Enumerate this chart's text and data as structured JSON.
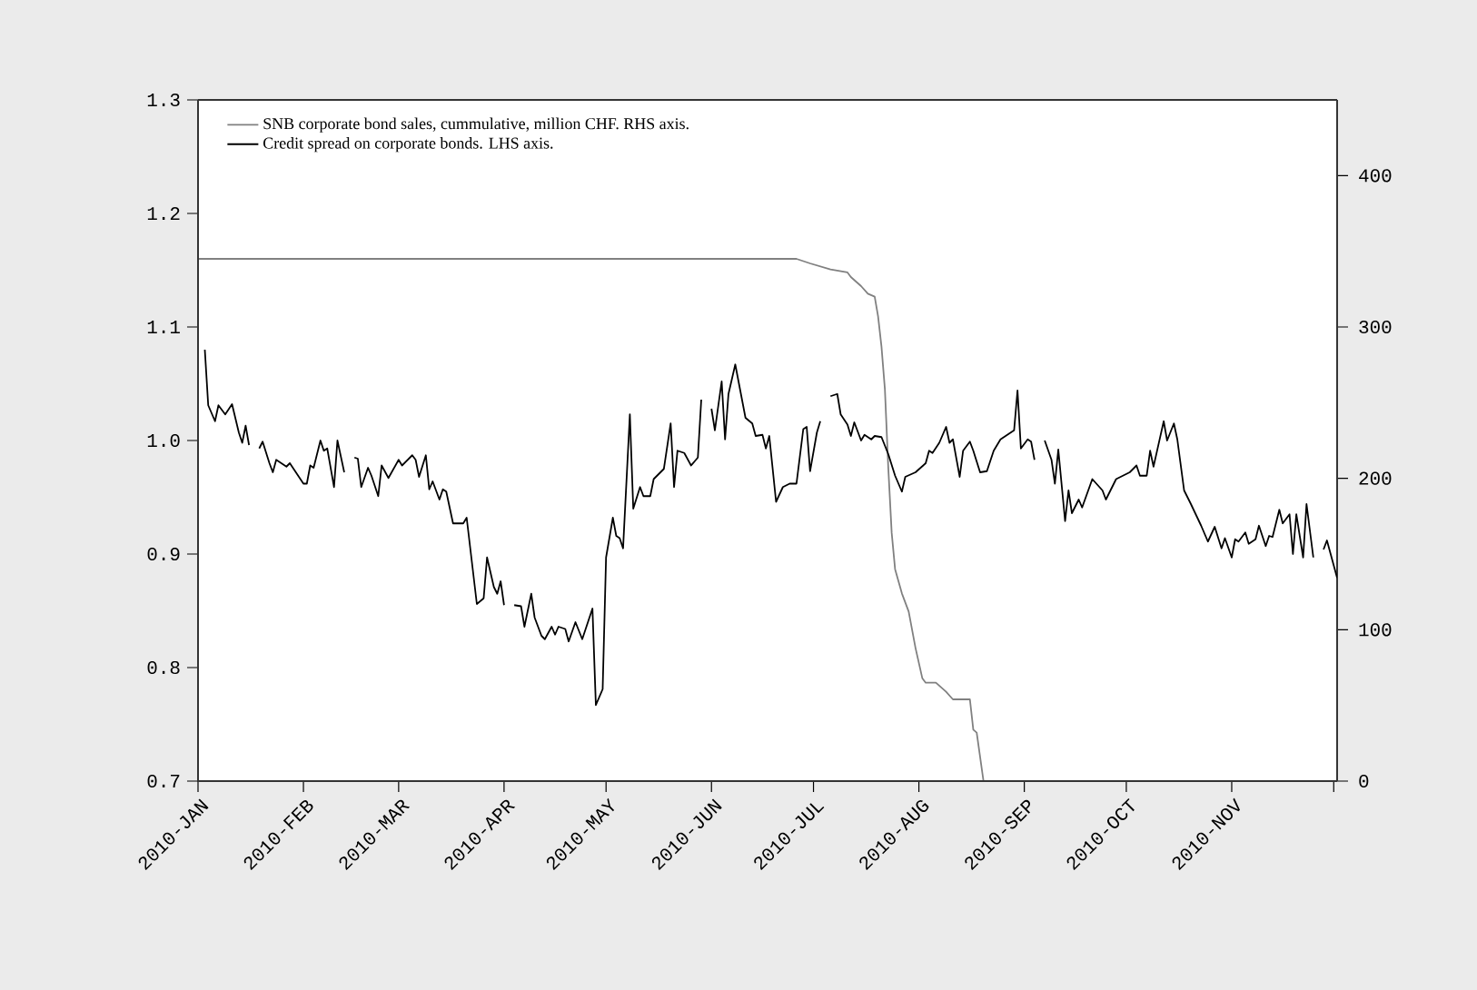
{
  "chart_data": {
    "type": "line",
    "legend": "top left",
    "xlim": [
      "2010-01-01",
      "2010-12-02"
    ],
    "xticks": [
      {
        "value": "2010-01-01",
        "label": "2010-JAN"
      },
      {
        "value": "2010-02-01",
        "label": "2010-FEB"
      },
      {
        "value": "2010-03-01",
        "label": "2010-MAR"
      },
      {
        "value": "2010-04-01",
        "label": "2010-APR"
      },
      {
        "value": "2010-05-01",
        "label": "2010-MAY"
      },
      {
        "value": "2010-06-01",
        "label": "2010-JUN"
      },
      {
        "value": "2010-07-01",
        "label": "2010-JUL"
      },
      {
        "value": "2010-08-01",
        "label": "2010-AUG"
      },
      {
        "value": "2010-09-01",
        "label": "2010-SEP"
      },
      {
        "value": "2010-10-01",
        "label": "2010-OCT"
      },
      {
        "value": "2010-11-01",
        "label": "2010-NOV"
      },
      {
        "value": "2010-12-01",
        "label": null
      }
    ],
    "ylim": [
      0.7,
      1.3
    ],
    "yticks": [
      {
        "value": 0.7,
        "label": "0.7"
      },
      {
        "value": 0.8,
        "label": "0.8"
      },
      {
        "value": 0.9,
        "label": "0.9"
      },
      {
        "value": 1.0,
        "label": "1.0"
      },
      {
        "value": 1.1,
        "label": "1.1"
      },
      {
        "value": 1.2,
        "label": "1.2"
      },
      {
        "value": 1.3,
        "label": "1.3"
      }
    ],
    "y2lim": [
      0,
      450
    ],
    "y2ticks": [
      0,
      100,
      200,
      300,
      400
    ],
    "series": [
      {
        "name": "SNB corporate bond sales, cummulative, million CHF. RHS axis.",
        "color": "#808080",
        "axis": "y2",
        "x": [
          "2010-01-01",
          "2010-06-26",
          "2010-06-30",
          "2010-07-06",
          "2010-07-11",
          "2010-07-12",
          "2010-07-15",
          "2010-07-17",
          "2010-07-19",
          "2010-07-20",
          "2010-07-21",
          "2010-07-22",
          "2010-07-23",
          "2010-07-24",
          "2010-07-25",
          "2010-07-27",
          "2010-07-29",
          "2010-07-31",
          "2010-08-02",
          "2010-08-03",
          "2010-08-06",
          "2010-08-09",
          "2010-08-11",
          "2010-08-16",
          "2010-08-17",
          "2010-08-18",
          "2010-08-20",
          "2010-12-02"
        ],
        "values": [
          345,
          345,
          342,
          338,
          336,
          333,
          327,
          322,
          320,
          307,
          287,
          259,
          207,
          164,
          140,
          124,
          112,
          88,
          68,
          65,
          65,
          59,
          54,
          54,
          34,
          32,
          0,
          0
        ]
      },
      {
        "name": "Credit spread on corporate bonds. LHS axis.",
        "color": "#000000",
        "axis": "y",
        "x": [
          "2010-01-03",
          "2010-01-04",
          "2010-01-06",
          "2010-01-07",
          "2010-01-09",
          "2010-01-11",
          "2010-01-13",
          "2010-01-14",
          "2010-01-15",
          "2010-01-16",
          "2010-01-18",
          "2010-01-19",
          "2010-01-20",
          "2010-01-22",
          "2010-01-23",
          "2010-01-24",
          "2010-01-27",
          "2010-01-28",
          "2010-02-01",
          "2010-02-02",
          "2010-02-03",
          "2010-02-04",
          "2010-02-06",
          "2010-02-07",
          "2010-02-08",
          "2010-02-10",
          "2010-02-11",
          "2010-02-13",
          "2010-02-14",
          "2010-02-16",
          "2010-02-17",
          "2010-02-18",
          "2010-02-20",
          "2010-02-21",
          "2010-02-23",
          "2010-02-24",
          "2010-02-26",
          "2010-03-01",
          "2010-03-02",
          "2010-03-05",
          "2010-03-06",
          "2010-03-07",
          "2010-03-09",
          "2010-03-10",
          "2010-03-11",
          "2010-03-13",
          "2010-03-14",
          "2010-03-15",
          "2010-03-17",
          "2010-03-20",
          "2010-03-21",
          "2010-03-24",
          "2010-03-26",
          "2010-03-27",
          "2010-03-29",
          "2010-03-30",
          "2010-03-31",
          "2010-04-01",
          "2010-04-02",
          "2010-04-04",
          "2010-04-06",
          "2010-04-07",
          "2010-04-09",
          "2010-04-10",
          "2010-04-12",
          "2010-04-13",
          "2010-04-15",
          "2010-04-16",
          "2010-04-17",
          "2010-04-19",
          "2010-04-20",
          "2010-04-22",
          "2010-04-24",
          "2010-04-27",
          "2010-04-28",
          "2010-04-30",
          "2010-05-01",
          "2010-05-03",
          "2010-05-04",
          "2010-05-05",
          "2010-05-06",
          "2010-05-08",
          "2010-05-09",
          "2010-05-11",
          "2010-05-12",
          "2010-05-14",
          "2010-05-15",
          "2010-05-18",
          "2010-05-20",
          "2010-05-21",
          "2010-05-22",
          "2010-05-24",
          "2010-05-26",
          "2010-05-28",
          "2010-05-29",
          "2010-05-30",
          "2010-06-01",
          "2010-06-02",
          "2010-06-04",
          "2010-06-05",
          "2010-06-06",
          "2010-06-08",
          "2010-06-11",
          "2010-06-13",
          "2010-06-14",
          "2010-06-16",
          "2010-06-17",
          "2010-06-18",
          "2010-06-20",
          "2010-06-22",
          "2010-06-24",
          "2010-06-26",
          "2010-06-28",
          "2010-06-29",
          "2010-06-30",
          "2010-07-02",
          "2010-07-03",
          "2010-07-04",
          "2010-07-06",
          "2010-07-08",
          "2010-07-09",
          "2010-07-11",
          "2010-07-12",
          "2010-07-13",
          "2010-07-15",
          "2010-07-16",
          "2010-07-18",
          "2010-07-19",
          "2010-07-21",
          "2010-07-23",
          "2010-07-25",
          "2010-07-27",
          "2010-07-28",
          "2010-07-31",
          "2010-08-03",
          "2010-08-04",
          "2010-08-05",
          "2010-08-07",
          "2010-08-09",
          "2010-08-10",
          "2010-08-11",
          "2010-08-13",
          "2010-08-14",
          "2010-08-16",
          "2010-08-17",
          "2010-08-19",
          "2010-08-21",
          "2010-08-23",
          "2010-08-25",
          "2010-08-29",
          "2010-08-30",
          "2010-08-31",
          "2010-09-02",
          "2010-09-03",
          "2010-09-04",
          "2010-09-05",
          "2010-09-07",
          "2010-09-09",
          "2010-09-10",
          "2010-09-11",
          "2010-09-13",
          "2010-09-14",
          "2010-09-15",
          "2010-09-17",
          "2010-09-18",
          "2010-09-21",
          "2010-09-24",
          "2010-09-25",
          "2010-09-28",
          "2010-09-30",
          "2010-10-02",
          "2010-10-04",
          "2010-10-05",
          "2010-10-07",
          "2010-10-08",
          "2010-10-09",
          "2010-10-12",
          "2010-10-13",
          "2010-10-15",
          "2010-10-16",
          "2010-10-18",
          "2010-10-20",
          "2010-10-23",
          "2010-10-25",
          "2010-10-27",
          "2010-10-29",
          "2010-10-30",
          "2010-11-01",
          "2010-11-02",
          "2010-11-03",
          "2010-11-05",
          "2010-11-06",
          "2010-11-08",
          "2010-11-09",
          "2010-11-11",
          "2010-11-12",
          "2010-11-13",
          "2010-11-15",
          "2010-11-16",
          "2010-11-18",
          "2010-11-19",
          "2010-11-20",
          "2010-11-22",
          "2010-11-23",
          "2010-11-25",
          "2010-11-26",
          "2010-11-28",
          "2010-11-29",
          "2010-12-02"
        ],
        "values": [
          1.08,
          1.031,
          1.017,
          1.031,
          1.023,
          1.032,
          1.007,
          0.998,
          1.013,
          0.996,
          null,
          0.993,
          0.999,
          0.98,
          0.972,
          0.983,
          0.977,
          0.98,
          0.962,
          0.962,
          0.978,
          0.976,
          1.0,
          0.991,
          0.993,
          0.959,
          1.0,
          0.972,
          null,
          0.985,
          0.984,
          0.959,
          0.976,
          0.969,
          0.951,
          0.978,
          0.967,
          0.983,
          0.978,
          0.987,
          0.983,
          0.968,
          0.987,
          0.957,
          0.964,
          0.948,
          0.957,
          0.955,
          0.927,
          0.927,
          0.932,
          0.856,
          0.861,
          0.897,
          0.871,
          0.865,
          0.876,
          0.855,
          null,
          0.855,
          0.854,
          0.836,
          0.865,
          0.844,
          0.828,
          0.825,
          0.836,
          0.829,
          0.836,
          0.834,
          0.823,
          0.84,
          0.825,
          0.852,
          0.767,
          0.781,
          0.897,
          0.932,
          0.916,
          0.914,
          0.905,
          1.023,
          0.94,
          0.959,
          0.951,
          0.951,
          0.966,
          0.975,
          1.015,
          0.959,
          0.991,
          0.989,
          0.978,
          0.985,
          1.036,
          null,
          1.028,
          1.009,
          1.052,
          1.001,
          1.041,
          1.067,
          1.02,
          1.015,
          1.004,
          1.005,
          0.993,
          1.004,
          0.946,
          0.959,
          0.962,
          0.962,
          1.01,
          1.012,
          0.973,
          1.007,
          1.017,
          null,
          1.039,
          1.041,
          1.023,
          1.014,
          1.004,
          1.016,
          1.0,
          1.005,
          1.001,
          1.004,
          1.003,
          0.988,
          0.969,
          0.955,
          0.968,
          0.972,
          0.98,
          0.991,
          0.989,
          0.998,
          1.012,
          0.998,
          1.001,
          0.968,
          0.991,
          0.999,
          0.991,
          0.972,
          0.973,
          0.991,
          1.001,
          1.009,
          1.044,
          0.993,
          1.001,
          0.999,
          0.983,
          null,
          1.0,
          0.983,
          0.962,
          0.992,
          0.929,
          0.956,
          0.936,
          0.948,
          0.941,
          0.966,
          0.956,
          0.948,
          0.966,
          0.969,
          0.972,
          0.978,
          0.969,
          0.969,
          0.991,
          0.977,
          1.017,
          1.0,
          1.015,
          1.001,
          0.956,
          0.944,
          0.925,
          0.911,
          0.924,
          0.905,
          0.914,
          0.897,
          0.913,
          0.911,
          0.919,
          0.909,
          0.913,
          0.925,
          0.907,
          0.916,
          0.915,
          0.939,
          0.927,
          0.935,
          0.9,
          0.935,
          0.897,
          0.944,
          0.897,
          null,
          0.904,
          0.912,
          0.879
        ]
      }
    ]
  }
}
